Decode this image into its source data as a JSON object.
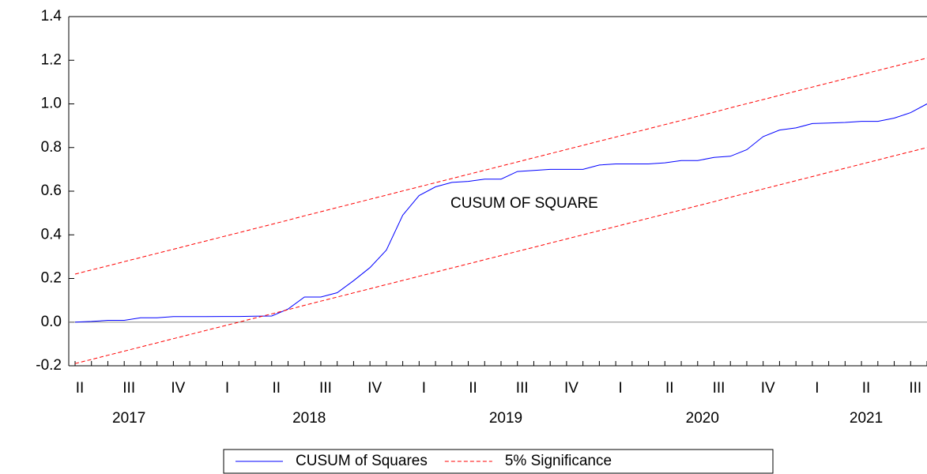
{
  "chart_data": {
    "type": "line",
    "annotation": "CUSUM OF SQUARE",
    "categories": [
      "II",
      null,
      null,
      "III",
      null,
      null,
      "IV",
      null,
      null,
      "I",
      null,
      null,
      "II",
      null,
      null,
      "III",
      null,
      null,
      "IV",
      null,
      null,
      "I",
      null,
      null,
      "II",
      null,
      null,
      "III",
      null,
      null,
      "IV",
      null,
      null,
      "I",
      null,
      null,
      "II",
      null,
      null,
      "III",
      null,
      null,
      "IV",
      null,
      null,
      "I",
      null,
      null,
      "II",
      null,
      null,
      "III",
      null
    ],
    "years": [
      null,
      null,
      null,
      "2017",
      null,
      null,
      null,
      null,
      null,
      null,
      null,
      null,
      null,
      null,
      "2018",
      null,
      null,
      null,
      null,
      null,
      null,
      null,
      null,
      null,
      null,
      null,
      "2019",
      null,
      null,
      null,
      null,
      null,
      null,
      null,
      null,
      null,
      null,
      null,
      "2020",
      null,
      null,
      null,
      null,
      null,
      null,
      null,
      null,
      null,
      "2021",
      null,
      null,
      null,
      null
    ],
    "series": [
      {
        "name": "CUSUM of Squares",
        "color": "#0000ff",
        "dashed": false,
        "values": [
          0.0,
          0.003,
          0.008,
          0.008,
          0.02,
          0.02,
          0.025,
          0.025,
          0.025,
          0.026,
          0.026,
          0.027,
          0.028,
          0.06,
          0.115,
          0.115,
          0.135,
          0.19,
          0.25,
          0.33,
          0.49,
          0.58,
          0.62,
          0.64,
          0.645,
          0.655,
          0.655,
          0.69,
          0.695,
          0.7,
          0.7,
          0.7,
          0.72,
          0.725,
          0.725,
          0.725,
          0.73,
          0.74,
          0.74,
          0.755,
          0.76,
          0.79,
          0.85,
          0.88,
          0.89,
          0.91,
          0.912,
          0.915,
          0.92,
          0.92,
          0.935,
          0.96,
          1.0
        ]
      },
      {
        "name": "5% Significance",
        "color": "#ff0000",
        "dashed": true,
        "values": [
          0.22,
          0.239,
          0.258,
          0.277,
          0.296,
          0.315,
          0.334,
          0.353,
          0.372,
          0.391,
          0.41,
          0.429,
          0.448,
          0.467,
          0.487,
          0.506,
          0.525,
          0.544,
          0.563,
          0.582,
          0.601,
          0.62,
          0.639,
          0.658,
          0.677,
          0.696,
          0.715,
          0.734,
          0.753,
          0.772,
          0.791,
          0.81,
          0.829,
          0.848,
          0.867,
          0.886,
          0.905,
          0.924,
          0.943,
          0.962,
          0.982,
          1.001,
          1.02,
          1.039,
          1.058,
          1.077,
          1.096,
          1.115,
          1.134,
          1.153,
          1.172,
          1.191,
          1.21
        ],
        "lower_values": [
          -0.19,
          -0.171,
          -0.152,
          -0.133,
          -0.114,
          -0.095,
          -0.076,
          -0.057,
          -0.038,
          -0.019,
          0.0,
          0.019,
          0.038,
          0.057,
          0.077,
          0.096,
          0.115,
          0.134,
          0.153,
          0.172,
          0.191,
          0.21,
          0.229,
          0.248,
          0.267,
          0.286,
          0.305,
          0.324,
          0.343,
          0.362,
          0.381,
          0.4,
          0.419,
          0.438,
          0.457,
          0.476,
          0.495,
          0.514,
          0.533,
          0.552,
          0.572,
          0.591,
          0.61,
          0.629,
          0.648,
          0.667,
          0.686,
          0.705,
          0.724,
          0.743,
          0.762,
          0.781,
          0.8
        ]
      }
    ],
    "ylim": [
      -0.2,
      1.4
    ],
    "yticks": [
      {
        "value": -0.2,
        "label": "-0.2"
      },
      {
        "value": 0,
        "label": "0.0"
      },
      0.2,
      0.4,
      0.6,
      0.8,
      {
        "value": 1,
        "label": "1.0"
      },
      1.2,
      1.4
    ],
    "zero_line": true,
    "legend": "bottom"
  }
}
